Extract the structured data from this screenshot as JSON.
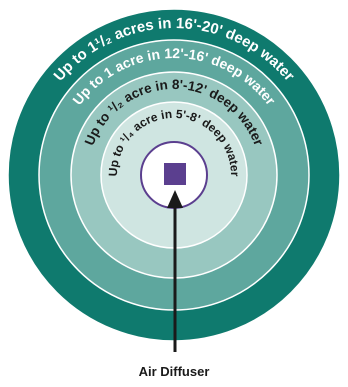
{
  "rings": [
    {
      "label": "Up to 1¹/₂ acres in 16'-20' deep water",
      "color": "#0f7a6e",
      "text_color": "#ffffff"
    },
    {
      "label": "Up to 1 acre in 12'-16' deep water",
      "color": "#5ea79e",
      "text_color": "#ffffff"
    },
    {
      "label": "Up to ¹/₂ acre in 8'-12' deep water",
      "color": "#98c7c0",
      "text_color": "#1a1a1a"
    },
    {
      "label": "Up to ¹/₄ acre in 5'-8' deep water",
      "color": "#cfe5e1",
      "text_color": "#1a1a1a"
    }
  ],
  "diffuser": {
    "label": "Air Diffuser",
    "color": "#5b3f8f"
  }
}
